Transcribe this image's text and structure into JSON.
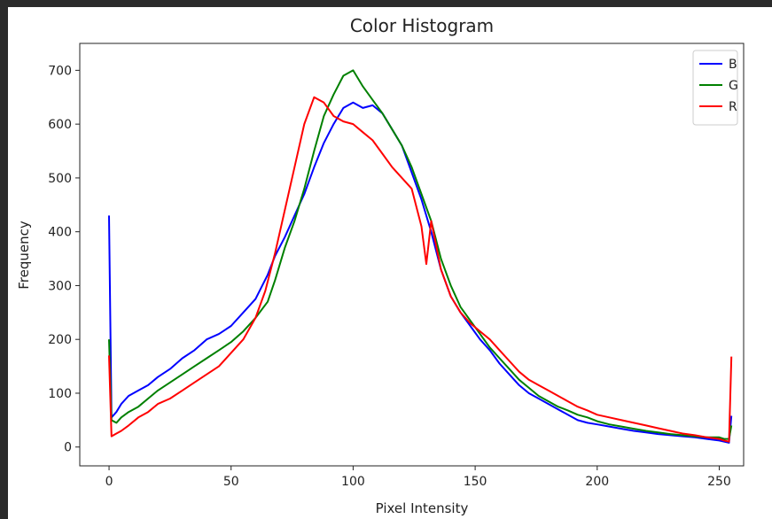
{
  "chart_data": {
    "type": "line",
    "title": "Color Histogram",
    "xlabel": "Pixel Intensity",
    "ylabel": "Frequency",
    "xlim": [
      -12,
      260
    ],
    "ylim": [
      -35,
      750
    ],
    "xticks": [
      0,
      50,
      100,
      150,
      200,
      250
    ],
    "yticks": [
      0,
      100,
      200,
      300,
      400,
      500,
      600,
      700
    ],
    "legend": "top-right",
    "grid": false,
    "series": [
      {
        "name": "B",
        "color": "#0000ff",
        "points": [
          [
            0,
            430
          ],
          [
            1,
            55
          ],
          [
            3,
            65
          ],
          [
            5,
            80
          ],
          [
            8,
            95
          ],
          [
            12,
            105
          ],
          [
            16,
            115
          ],
          [
            20,
            130
          ],
          [
            25,
            145
          ],
          [
            30,
            165
          ],
          [
            35,
            180
          ],
          [
            40,
            200
          ],
          [
            45,
            210
          ],
          [
            50,
            225
          ],
          [
            55,
            250
          ],
          [
            60,
            275
          ],
          [
            65,
            320
          ],
          [
            68,
            355
          ],
          [
            72,
            390
          ],
          [
            76,
            430
          ],
          [
            80,
            470
          ],
          [
            84,
            520
          ],
          [
            88,
            565
          ],
          [
            92,
            600
          ],
          [
            96,
            630
          ],
          [
            100,
            640
          ],
          [
            104,
            630
          ],
          [
            108,
            635
          ],
          [
            112,
            620
          ],
          [
            116,
            590
          ],
          [
            120,
            560
          ],
          [
            124,
            510
          ],
          [
            128,
            460
          ],
          [
            132,
            400
          ],
          [
            136,
            330
          ],
          [
            140,
            280
          ],
          [
            144,
            250
          ],
          [
            148,
            225
          ],
          [
            152,
            200
          ],
          [
            156,
            180
          ],
          [
            160,
            155
          ],
          [
            164,
            135
          ],
          [
            168,
            115
          ],
          [
            172,
            100
          ],
          [
            176,
            90
          ],
          [
            180,
            80
          ],
          [
            184,
            70
          ],
          [
            188,
            60
          ],
          [
            192,
            50
          ],
          [
            196,
            45
          ],
          [
            200,
            42
          ],
          [
            205,
            38
          ],
          [
            210,
            34
          ],
          [
            215,
            30
          ],
          [
            220,
            27
          ],
          [
            225,
            24
          ],
          [
            230,
            22
          ],
          [
            235,
            20
          ],
          [
            240,
            18
          ],
          [
            245,
            15
          ],
          [
            250,
            12
          ],
          [
            252,
            10
          ],
          [
            254,
            8
          ],
          [
            255,
            58
          ]
        ]
      },
      {
        "name": "G",
        "color": "#008000",
        "points": [
          [
            0,
            200
          ],
          [
            1,
            50
          ],
          [
            3,
            45
          ],
          [
            5,
            55
          ],
          [
            8,
            65
          ],
          [
            12,
            75
          ],
          [
            16,
            90
          ],
          [
            20,
            105
          ],
          [
            25,
            120
          ],
          [
            30,
            135
          ],
          [
            35,
            150
          ],
          [
            40,
            165
          ],
          [
            45,
            180
          ],
          [
            50,
            195
          ],
          [
            55,
            215
          ],
          [
            60,
            240
          ],
          [
            65,
            270
          ],
          [
            68,
            310
          ],
          [
            72,
            370
          ],
          [
            76,
            420
          ],
          [
            80,
            480
          ],
          [
            84,
            550
          ],
          [
            88,
            615
          ],
          [
            92,
            655
          ],
          [
            96,
            690
          ],
          [
            100,
            700
          ],
          [
            104,
            670
          ],
          [
            108,
            645
          ],
          [
            112,
            620
          ],
          [
            116,
            590
          ],
          [
            120,
            560
          ],
          [
            124,
            520
          ],
          [
            128,
            470
          ],
          [
            132,
            420
          ],
          [
            136,
            350
          ],
          [
            140,
            300
          ],
          [
            144,
            260
          ],
          [
            148,
            235
          ],
          [
            152,
            210
          ],
          [
            156,
            185
          ],
          [
            160,
            165
          ],
          [
            164,
            145
          ],
          [
            168,
            125
          ],
          [
            172,
            110
          ],
          [
            176,
            95
          ],
          [
            180,
            85
          ],
          [
            184,
            75
          ],
          [
            188,
            68
          ],
          [
            192,
            60
          ],
          [
            196,
            55
          ],
          [
            200,
            48
          ],
          [
            205,
            42
          ],
          [
            210,
            38
          ],
          [
            215,
            34
          ],
          [
            220,
            30
          ],
          [
            225,
            27
          ],
          [
            230,
            24
          ],
          [
            235,
            22
          ],
          [
            240,
            20
          ],
          [
            245,
            18
          ],
          [
            250,
            18
          ],
          [
            252,
            15
          ],
          [
            254,
            15
          ],
          [
            255,
            40
          ]
        ]
      },
      {
        "name": "R",
        "color": "#ff0000",
        "points": [
          [
            0,
            170
          ],
          [
            1,
            20
          ],
          [
            3,
            25
          ],
          [
            5,
            30
          ],
          [
            8,
            40
          ],
          [
            12,
            55
          ],
          [
            16,
            65
          ],
          [
            20,
            80
          ],
          [
            25,
            90
          ],
          [
            30,
            105
          ],
          [
            35,
            120
          ],
          [
            40,
            135
          ],
          [
            45,
            150
          ],
          [
            50,
            175
          ],
          [
            55,
            200
          ],
          [
            60,
            240
          ],
          [
            64,
            290
          ],
          [
            68,
            360
          ],
          [
            72,
            440
          ],
          [
            76,
            520
          ],
          [
            80,
            600
          ],
          [
            84,
            650
          ],
          [
            88,
            640
          ],
          [
            92,
            615
          ],
          [
            96,
            605
          ],
          [
            100,
            600
          ],
          [
            104,
            585
          ],
          [
            108,
            570
          ],
          [
            112,
            545
          ],
          [
            116,
            520
          ],
          [
            120,
            500
          ],
          [
            124,
            480
          ],
          [
            128,
            410
          ],
          [
            130,
            340
          ],
          [
            132,
            420
          ],
          [
            136,
            330
          ],
          [
            140,
            280
          ],
          [
            144,
            250
          ],
          [
            148,
            230
          ],
          [
            152,
            215
          ],
          [
            156,
            200
          ],
          [
            160,
            180
          ],
          [
            164,
            160
          ],
          [
            168,
            140
          ],
          [
            172,
            125
          ],
          [
            176,
            115
          ],
          [
            180,
            105
          ],
          [
            184,
            95
          ],
          [
            188,
            85
          ],
          [
            192,
            75
          ],
          [
            196,
            68
          ],
          [
            200,
            60
          ],
          [
            205,
            55
          ],
          [
            210,
            50
          ],
          [
            215,
            45
          ],
          [
            220,
            40
          ],
          [
            225,
            35
          ],
          [
            230,
            30
          ],
          [
            235,
            25
          ],
          [
            240,
            22
          ],
          [
            245,
            18
          ],
          [
            250,
            15
          ],
          [
            252,
            12
          ],
          [
            254,
            10
          ],
          [
            255,
            168
          ]
        ]
      }
    ]
  }
}
